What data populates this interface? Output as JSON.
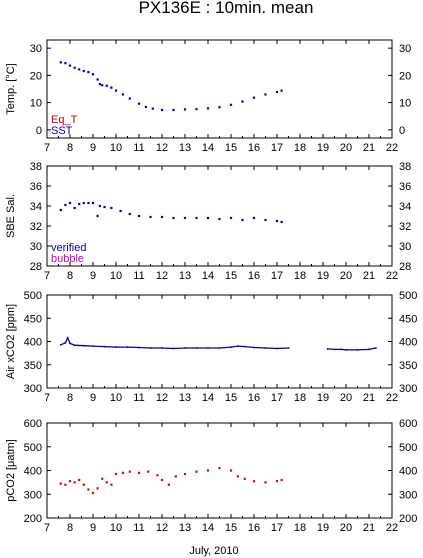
{
  "title": "PX136E : 10min. mean",
  "xlabel": "July, 2010",
  "colors": {
    "eq_t": "#cc0000",
    "sst": "#0000aa",
    "verified": "#0000aa",
    "bubble": "#cc00cc",
    "pco2": "#dd0000",
    "axis": "#000000"
  },
  "chart_data": [
    {
      "type": "scatter",
      "ylabel": "Temp. [°C]",
      "xlim": [
        7,
        22
      ],
      "ylim": [
        -3,
        33
      ],
      "xticks": [
        7,
        8,
        9,
        10,
        11,
        12,
        13,
        14,
        15,
        16,
        17,
        18,
        19,
        20,
        21,
        22
      ],
      "yticks": [
        0,
        10,
        20,
        30
      ],
      "legend": [
        {
          "label": "Eq_T",
          "color": "#cc0000"
        },
        {
          "label": "SST",
          "color": "#0000aa"
        }
      ],
      "series": [
        {
          "name": "SST",
          "color": "#0000aa",
          "x": [
            7.6,
            7.8,
            8.0,
            8.2,
            8.4,
            8.6,
            8.8,
            9.0,
            9.2,
            9.3,
            9.4,
            9.6,
            9.8,
            10.0,
            10.3,
            10.6,
            11.0,
            11.3,
            11.6,
            12.0,
            12.5,
            13.0,
            13.5,
            14.0,
            14.5,
            15.0,
            15.5,
            16.0,
            16.5,
            17.0,
            17.2
          ],
          "y": [
            24.8,
            24.5,
            23.6,
            22.8,
            22.2,
            21.6,
            21.2,
            20.4,
            18.5,
            16.8,
            16.4,
            16.2,
            15.5,
            14.4,
            13.0,
            11.5,
            9.6,
            8.4,
            7.8,
            7.3,
            7.3,
            7.5,
            7.6,
            7.9,
            8.3,
            9.2,
            10.4,
            11.8,
            13.0,
            13.9,
            14.4
          ]
        }
      ]
    },
    {
      "type": "scatter",
      "ylabel": "SBE Sal.",
      "xlim": [
        7,
        22
      ],
      "ylim": [
        28,
        38
      ],
      "xticks": [
        7,
        8,
        9,
        10,
        11,
        12,
        13,
        14,
        15,
        16,
        17,
        18,
        19,
        20,
        21,
        22
      ],
      "yticks": [
        28,
        30,
        32,
        34,
        36,
        38
      ],
      "legend": [
        {
          "label": "verified",
          "color": "#0000aa"
        },
        {
          "label": "bubble",
          "color": "#cc00cc"
        }
      ],
      "series": [
        {
          "name": "verified",
          "color": "#0000aa",
          "x": [
            7.6,
            7.8,
            8.0,
            8.2,
            8.4,
            8.6,
            8.8,
            9.0,
            9.2,
            9.3,
            9.5,
            9.8,
            10.2,
            10.6,
            11.0,
            11.5,
            12.0,
            12.5,
            13.0,
            13.5,
            14.0,
            14.5,
            15.0,
            15.5,
            16.0,
            16.5,
            17.0,
            17.2
          ],
          "y": [
            33.6,
            34.1,
            34.3,
            33.8,
            34.2,
            34.3,
            34.3,
            34.3,
            33.0,
            34.0,
            33.9,
            33.8,
            33.5,
            33.2,
            33.0,
            32.9,
            32.9,
            32.8,
            32.8,
            32.8,
            32.8,
            32.7,
            32.8,
            32.6,
            32.8,
            32.6,
            32.5,
            32.4
          ]
        }
      ]
    },
    {
      "type": "line",
      "ylabel": "Air xCO2 [ppm]",
      "xlim": [
        7,
        22
      ],
      "ylim": [
        300,
        500
      ],
      "xticks": [
        7,
        8,
        9,
        10,
        11,
        12,
        13,
        14,
        15,
        16,
        17,
        18,
        19,
        20,
        21,
        22
      ],
      "yticks": [
        300,
        350,
        400,
        450,
        500
      ],
      "series": [
        {
          "color": "#0000aa",
          "x": [
            7.6,
            7.8,
            7.9,
            8.0,
            8.2,
            8.6,
            9.0,
            9.5,
            10.0,
            10.5,
            11.0,
            11.5,
            12.0,
            12.5,
            13.0,
            13.5,
            14.0,
            14.5,
            15.0,
            15.3,
            15.6,
            16.0,
            16.5,
            17.0,
            17.5
          ],
          "y": [
            393,
            397,
            408,
            396,
            392,
            391,
            390,
            389,
            388,
            388,
            387,
            386,
            386,
            385,
            386,
            386,
            386,
            386,
            388,
            390,
            389,
            387,
            386,
            385,
            386
          ]
        },
        {
          "color": "#0000aa",
          "x": [
            19.2,
            19.5,
            19.8,
            20.0,
            20.5,
            21.0,
            21.3
          ],
          "y": [
            384,
            383,
            383,
            382,
            382,
            383,
            386
          ]
        }
      ]
    },
    {
      "type": "scatter",
      "ylabel": "pCO2 [μatm]",
      "xlim": [
        7,
        22
      ],
      "ylim": [
        200,
        600
      ],
      "xticks": [
        7,
        8,
        9,
        10,
        11,
        12,
        13,
        14,
        15,
        16,
        17,
        18,
        19,
        20,
        21,
        22
      ],
      "yticks": [
        200,
        300,
        400,
        500,
        600
      ],
      "series": [
        {
          "color": "#dd0000",
          "x": [
            7.6,
            7.8,
            8.0,
            8.2,
            8.4,
            8.6,
            8.8,
            9.0,
            9.2,
            9.4,
            9.6,
            9.8,
            10.0,
            10.3,
            10.6,
            11.0,
            11.4,
            11.8,
            12.0,
            12.3,
            12.6,
            13.0,
            13.5,
            14.0,
            14.5,
            15.0,
            15.3,
            15.6,
            16.0,
            16.5,
            17.0,
            17.2
          ],
          "y": [
            345,
            340,
            355,
            350,
            360,
            340,
            320,
            305,
            325,
            365,
            350,
            340,
            385,
            390,
            395,
            390,
            395,
            380,
            360,
            340,
            375,
            385,
            395,
            400,
            410,
            400,
            375,
            365,
            355,
            350,
            355,
            360
          ]
        }
      ]
    }
  ]
}
